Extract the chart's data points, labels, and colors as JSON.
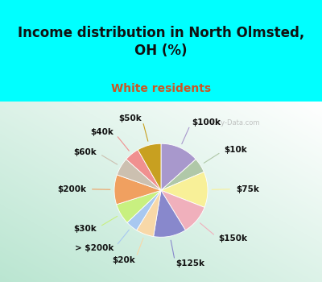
{
  "title": "Income distribution in North Olmsted,\nOH (%)",
  "subtitle": "White residents",
  "background_color": "#00FFFF",
  "watermark": "City-Data.com",
  "labels": [
    "$100k",
    "$10k",
    "$75k",
    "$150k",
    "$125k",
    "$20k",
    "> $200k",
    "$30k",
    "$200k",
    "$60k",
    "$40k",
    "$50k"
  ],
  "values": [
    13,
    5,
    12,
    10,
    11,
    6,
    4,
    7,
    10,
    6,
    5,
    8
  ],
  "colors": [
    "#a898cc",
    "#b0c8a8",
    "#f8f098",
    "#f0b0bc",
    "#8888cc",
    "#f8d8a8",
    "#a8c8f0",
    "#c8f080",
    "#f0a060",
    "#ccc0b0",
    "#f09090",
    "#c8a020"
  ],
  "label_fontsize": 7.5,
  "title_fontsize": 12,
  "subtitle_fontsize": 10,
  "title_color": "#111111",
  "subtitle_color": "#cc5522"
}
